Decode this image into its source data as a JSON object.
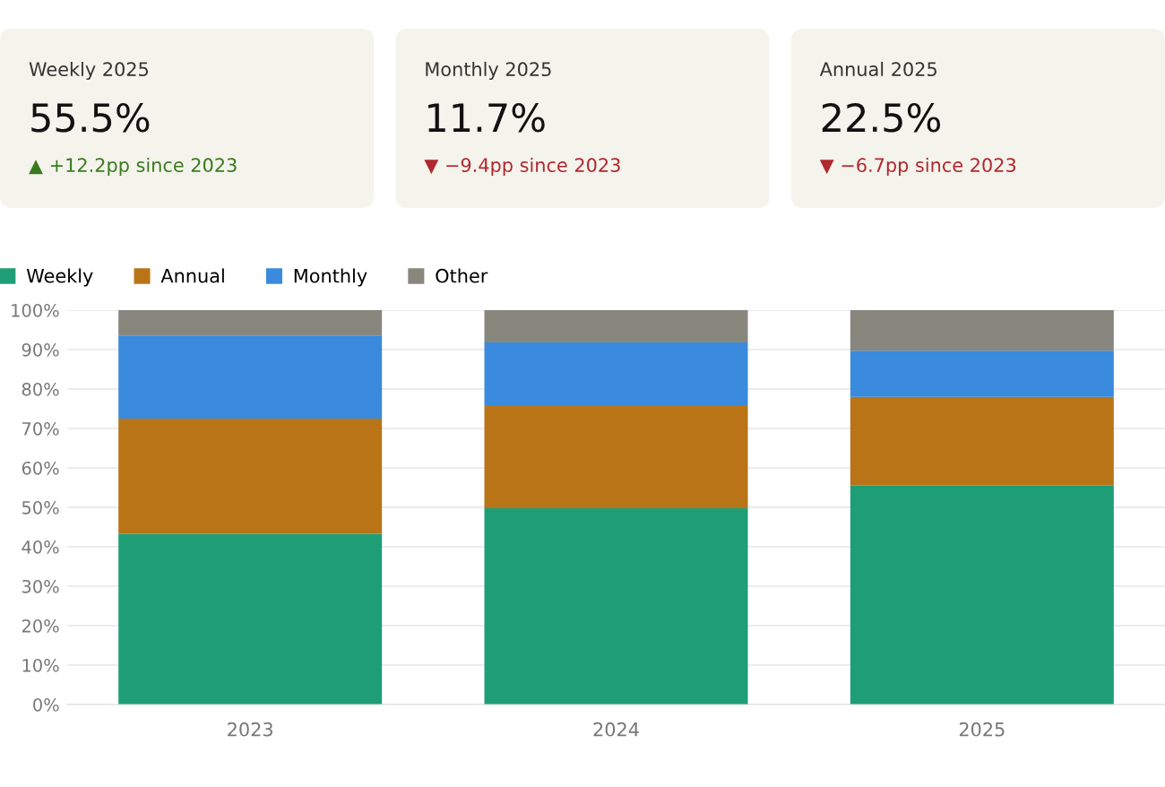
{
  "chart_data": [
    {
      "type": "other",
      "title": "Weekly 2025",
      "subtitle": "55.5%",
      "annotations": [
        "▲ +12.2pp since 2023"
      ],
      "color": "#3a7a1e"
    },
    {
      "type": "other",
      "title": "Monthly 2025",
      "subtitle": "11.7%",
      "annotations": [
        "▼ −9.4pp since 2023"
      ],
      "color": "#b0282e"
    },
    {
      "type": "other",
      "title": "Annual 2025",
      "subtitle": "22.5%",
      "annotations": [
        "▼ −6.7pp since 2023"
      ],
      "color": "#b0282e"
    },
    {
      "type": "bar",
      "stacked": true,
      "categories": [
        "2023",
        "2024",
        "2025"
      ],
      "series": [
        {
          "name": "Weekly",
          "color": "#1f9e75",
          "values": [
            43.3,
            49.8,
            55.5
          ]
        },
        {
          "name": "Annual",
          "color": "#b87417",
          "values": [
            29.2,
            26.1,
            22.5
          ]
        },
        {
          "name": "Monthly",
          "color": "#3a8ade",
          "values": [
            21.1,
            15.9,
            11.7
          ]
        },
        {
          "name": "Other",
          "color": "#88877e",
          "values": [
            6.4,
            8.2,
            10.3
          ]
        }
      ],
      "ylim": [
        0,
        100
      ],
      "yticks": [
        {
          "value": 0,
          "label": "0%"
        },
        {
          "value": 10,
          "label": "10%"
        },
        {
          "value": 20,
          "label": "20%"
        },
        {
          "value": 30,
          "label": "30%"
        },
        {
          "value": 40,
          "label": "40%"
        },
        {
          "value": 50,
          "label": "50%"
        },
        {
          "value": 60,
          "label": "60%"
        },
        {
          "value": 70,
          "label": "70%"
        },
        {
          "value": 80,
          "label": "80%"
        },
        {
          "value": 90,
          "label": "90%"
        },
        {
          "value": 100,
          "label": "100%"
        }
      ],
      "grid": "y",
      "legend": "top left"
    }
  ]
}
